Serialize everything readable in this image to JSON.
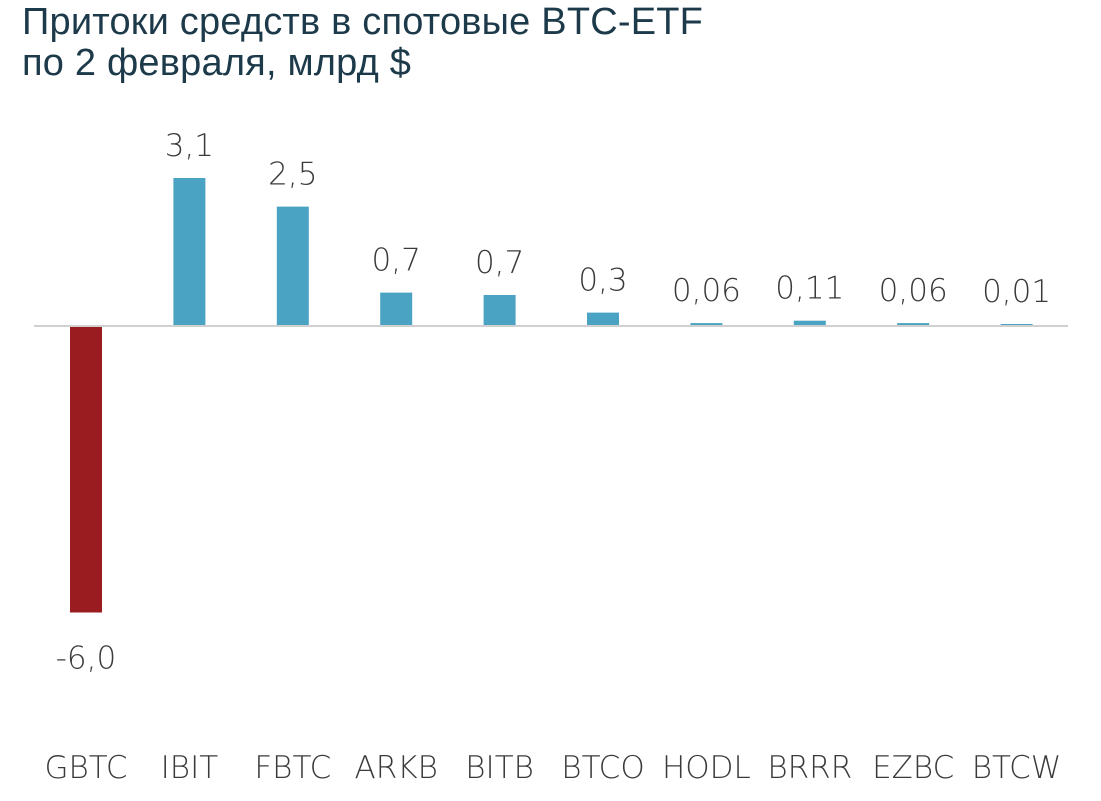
{
  "chart_data": {
    "type": "bar",
    "title_lines": [
      "Притоки средств в спотовые BTC-ETF",
      "по 2 февраля, млрд $"
    ],
    "categories": [
      "GBTC",
      "IBIT",
      "FBTC",
      "ARKB",
      "BITB",
      "BTCO",
      "HODL",
      "BRRR",
      "EZBC",
      "BTCW"
    ],
    "values": [
      -6.0,
      3.1,
      2.5,
      0.7,
      0.65,
      0.28,
      0.06,
      0.11,
      0.06,
      0.01
    ],
    "value_labels": [
      "-6,0",
      "3,1",
      "2,5",
      "0,7",
      "0,7",
      "0,3",
      "0,06",
      "0,11",
      "0,06",
      "0,01"
    ],
    "ylim": [
      -6.0,
      3.1
    ],
    "xlabel": "",
    "ylabel": "",
    "grid": false,
    "legend": "none",
    "colors": {
      "positive": "#4ba3c3",
      "negative": "#9b1c20",
      "baseline": "#d0d0d0"
    }
  }
}
